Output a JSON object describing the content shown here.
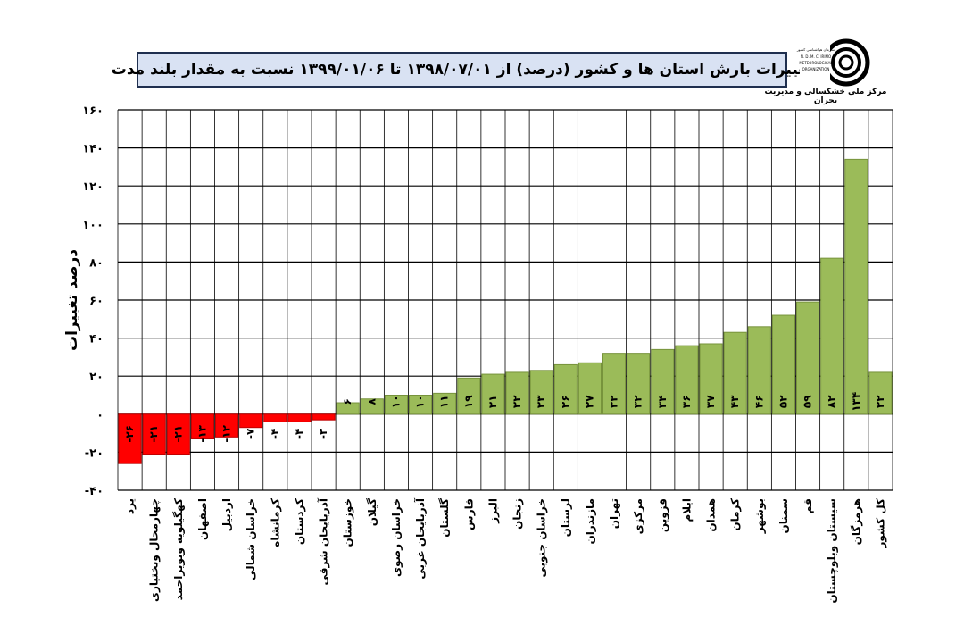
{
  "title": "تغییرات بارش استان ها و کشور (درصد) از ۱۳۹۸/۰۷/۰۱ تا ۱۳۹۹/۰۱/۰۶ نسبت به مقدار بلند مدت",
  "logo": {
    "caption": "مرکز ملی خشکسالی و مدیریت بحران",
    "small_text": [
      "سازمان هواشناسی کشور",
      "N. D. M. C. IRIMO",
      "METEOROLOGICAL",
      "ORGANIZATION"
    ]
  },
  "colors": {
    "positive": "#9bbb59",
    "positive_dark": "#77933c",
    "negative": "#ff0000",
    "negative_dark": "#c00000",
    "grid": "#000000"
  },
  "chart_data": {
    "type": "bar",
    "ylabel": "درصد تغییرات",
    "xlabel": "",
    "ylim": [
      -40,
      160
    ],
    "yticks": [
      -40,
      -20,
      0,
      20,
      40,
      60,
      80,
      100,
      120,
      140,
      160
    ],
    "ytick_labels": [
      "-۴۰",
      "-۲۰",
      "۰",
      "۲۰",
      "۴۰",
      "۶۰",
      "۸۰",
      "۱۰۰",
      "۱۲۰",
      "۱۴۰",
      "۱۶۰"
    ],
    "grid": true,
    "categories": [
      "یزد",
      "چهارمحال وبختیاری",
      "کهگیلویه وبویراحمد",
      "اصفهان",
      "اردبیل",
      "خراسان شمالی",
      "کرمانشاه",
      "کردستان",
      "آذربایجان شرقی",
      "خوزستان",
      "گیلان",
      "خراسان رضوی",
      "آذربایجان غربی",
      "گلستان",
      "فارس",
      "البرز",
      "زنجان",
      "خراسان جنوبی",
      "لرستان",
      "مازندران",
      "تهران",
      "مرکزی",
      "قزوین",
      "ایلام",
      "همدان",
      "کرمان",
      "بوشهر",
      "سمنان",
      "قم",
      "سیستان وبلوچستان",
      "هرمزگان",
      "کل کشور"
    ],
    "values": [
      -26,
      -21,
      -21,
      -13,
      -12,
      -7,
      -4,
      -4,
      -3,
      6,
      8,
      10,
      10,
      11,
      19,
      21,
      22,
      23,
      26,
      27,
      32,
      32,
      34,
      36,
      37,
      43,
      46,
      52,
      59,
      82,
      134,
      22
    ],
    "value_labels": [
      "-۲۶",
      "-۲۱",
      "-۲۱",
      "-۱۳",
      "-۱۲",
      "-۷",
      "-۴",
      "-۴",
      "-۳",
      "۶",
      "۸",
      "۱۰",
      "۱۰",
      "۱۱",
      "۱۹",
      "۲۱",
      "۲۲",
      "۲۳",
      "۲۶",
      "۲۷",
      "۳۲",
      "۳۲",
      "۳۴",
      "۳۶",
      "۳۷",
      "۴۳",
      "۴۶",
      "۵۲",
      "۵۹",
      "۸۲",
      "۱۳۴",
      "۲۲"
    ]
  }
}
